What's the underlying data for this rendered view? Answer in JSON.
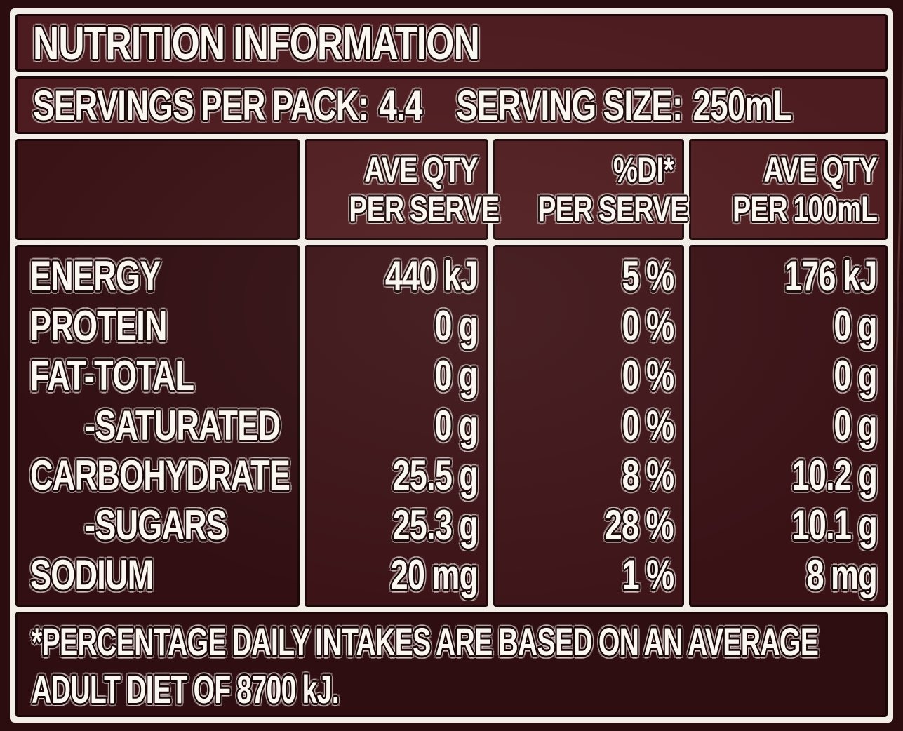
{
  "colors": {
    "page_background": "#2b0d10",
    "bar_background": "#4d1c20",
    "cell_background": "#351014",
    "border_white": "#f2eee7",
    "keyline_dark": "#1b0709",
    "text_white": "#faf7f1"
  },
  "title": "NUTRITION INFORMATION",
  "serving_bar": {
    "pack_label": "SERVINGS PER PACK:",
    "pack_value": "4.4",
    "size_label": "SERVING SIZE:",
    "size_value": "250mL"
  },
  "table": {
    "column_headers": [
      {
        "line1": "",
        "line2": ""
      },
      {
        "line1": "AVE QTY",
        "line2": "PER SERVE"
      },
      {
        "line1": "%DI*",
        "line2": "PER SERVE"
      },
      {
        "line1": "AVE QTY",
        "line2": "PER 100mL"
      }
    ],
    "rows": [
      {
        "nutrient": "ENERGY",
        "ave_qty_per_serve": "440 kJ",
        "di_per_serve": "5 %",
        "ave_qty_per_100ml": "176 kJ"
      },
      {
        "nutrient": "PROTEIN",
        "ave_qty_per_serve": "0 g",
        "di_per_serve": "0 %",
        "ave_qty_per_100ml": "0 g"
      },
      {
        "nutrient": "FAT-TOTAL",
        "ave_qty_per_serve": "0 g",
        "di_per_serve": "0 %",
        "ave_qty_per_100ml": "0 g"
      },
      {
        "nutrient": "-SATURATED",
        "ave_qty_per_serve": "0 g",
        "di_per_serve": "0 %",
        "ave_qty_per_100ml": "0 g"
      },
      {
        "nutrient": "CARBOHYDRATE",
        "ave_qty_per_serve": "25.5 g",
        "di_per_serve": "8 %",
        "ave_qty_per_100ml": "10.2 g"
      },
      {
        "nutrient": "-SUGARS",
        "ave_qty_per_serve": "25.3 g",
        "di_per_serve": "28 %",
        "ave_qty_per_100ml": "10.1 g"
      },
      {
        "nutrient": "SODIUM",
        "ave_qty_per_serve": "20 mg",
        "di_per_serve": "1 %",
        "ave_qty_per_100ml": "8 mg"
      }
    ]
  },
  "footnote": {
    "line1": "*PERCENTAGE DAILY INTAKES ARE BASED ON AN AVERAGE",
    "line2": "ADULT DIET OF 8700 kJ."
  }
}
